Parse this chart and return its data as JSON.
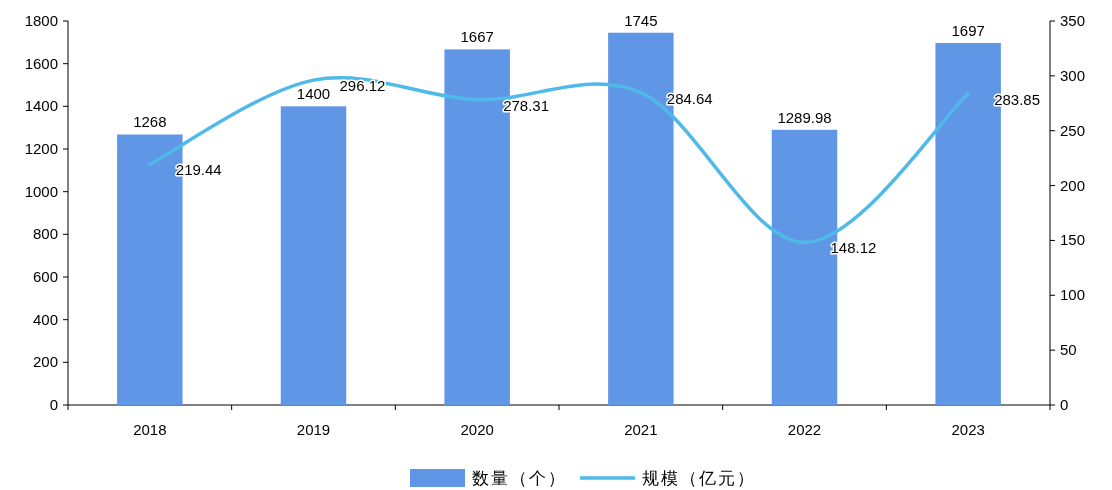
{
  "chart_data": {
    "type": "bar",
    "categories": [
      "2018",
      "2019",
      "2020",
      "2021",
      "2022",
      "2023"
    ],
    "series": [
      {
        "name": "数量（个）",
        "color": "#6096e6",
        "values": [
          1268,
          1400,
          1667,
          1745,
          1289.98,
          1697
        ]
      },
      {
        "name": "规模（亿元）",
        "type": "line",
        "axis": "y2",
        "color": "#4fb9e8",
        "values": [
          219.44,
          296.12,
          278.31,
          284.64,
          148.12,
          283.85
        ]
      }
    ],
    "ylim": [
      0,
      1800
    ],
    "yticks": [
      0,
      200,
      400,
      600,
      800,
      1000,
      1200,
      1400,
      1600,
      1800
    ],
    "y2lim": [
      0,
      350
    ],
    "y2ticks": [
      0,
      50,
      100,
      150,
      200,
      250,
      300,
      350
    ],
    "data_labels": true,
    "legend": "bottom",
    "grid": false,
    "marker": "none",
    "line_style": "solid"
  }
}
